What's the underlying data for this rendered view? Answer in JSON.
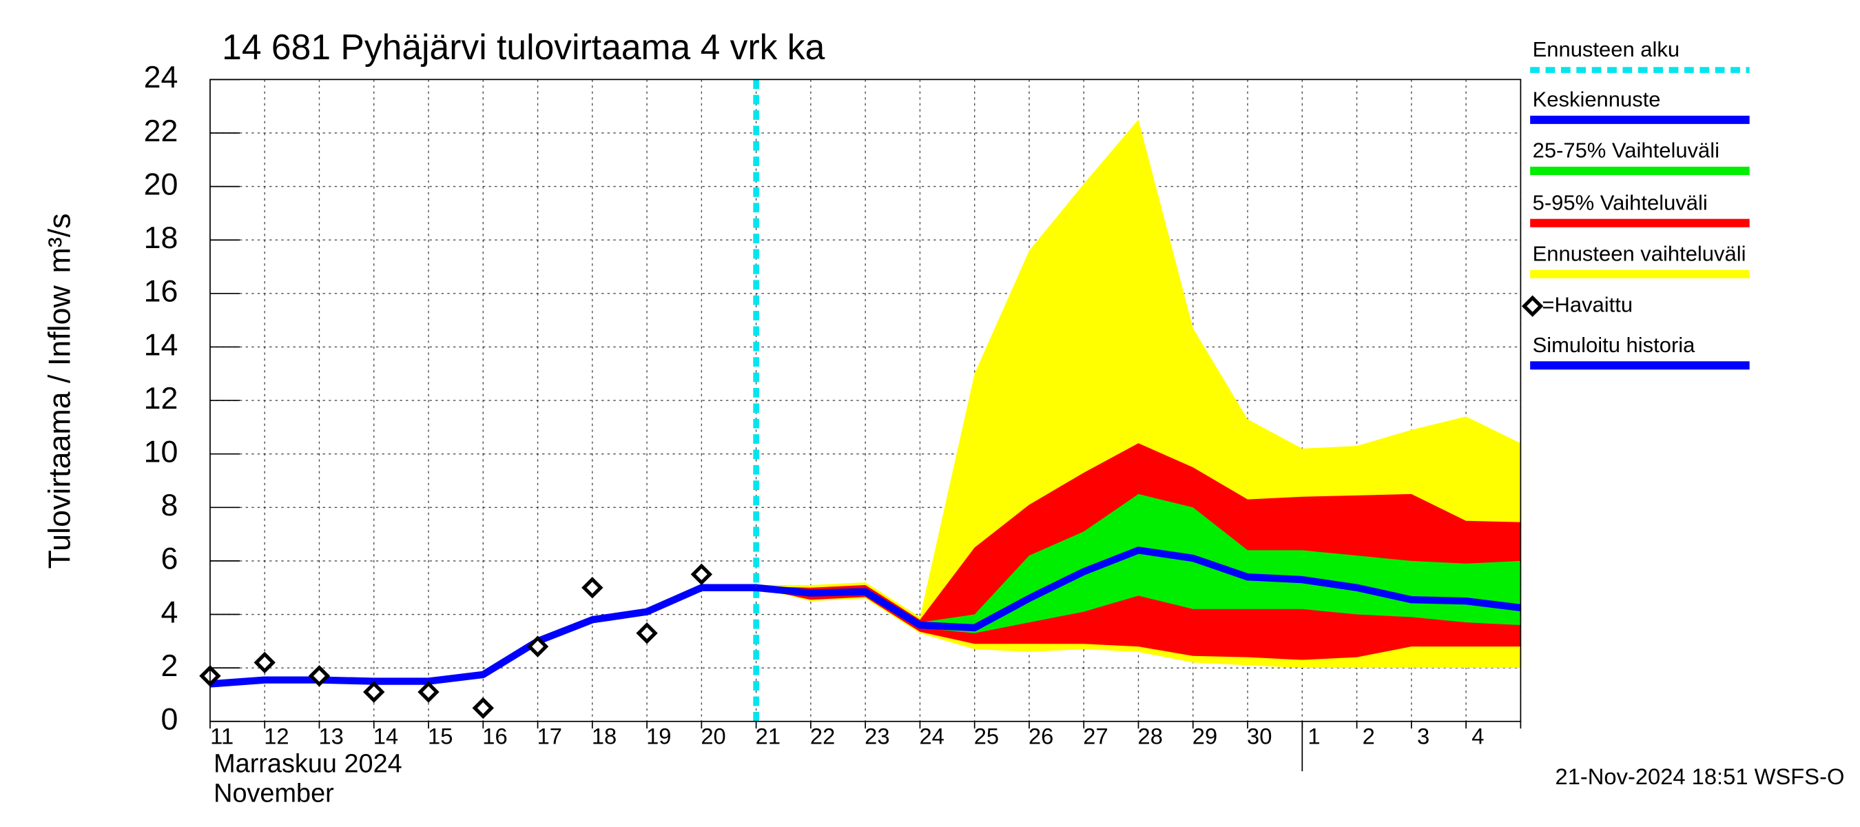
{
  "chart_data": {
    "type": "forecast",
    "title": "14 681 Pyhäjärvi tulovirtaama 4 vrk ka",
    "y_label": "Tulovirtaama / Inflow",
    "y_unit": "m³/s",
    "x_label_fi": "Marraskuu 2024",
    "x_label_en": "November",
    "footer": "21-Nov-2024 18:51 WSFS-O",
    "categories": [
      "11",
      "12",
      "13",
      "14",
      "15",
      "16",
      "17",
      "18",
      "19",
      "20",
      "21",
      "22",
      "23",
      "24",
      "25",
      "26",
      "27",
      "28",
      "29",
      "30",
      "1",
      "2",
      "3",
      "4",
      null
    ],
    "ylim": [
      0,
      24
    ],
    "yticks": [
      0,
      2,
      4,
      6,
      8,
      10,
      12,
      14,
      16,
      18,
      20,
      22,
      24
    ],
    "grid": true,
    "forecast_start": {
      "name": "Ennusteen alku",
      "color": "#00e5ee",
      "category_index": 10
    },
    "bands": [
      {
        "name": "Ennusteen vaihteluväli",
        "color": "#ffff00",
        "lower": [
          null,
          null,
          null,
          null,
          null,
          null,
          null,
          null,
          null,
          null,
          5.0,
          4.5,
          4.6,
          3.3,
          2.7,
          2.6,
          2.7,
          2.6,
          2.2,
          2.1,
          2.0,
          2.0,
          2.0,
          2.0,
          2.0
        ],
        "upper": [
          null,
          null,
          null,
          null,
          null,
          null,
          null,
          null,
          null,
          null,
          5.1,
          5.1,
          5.2,
          3.9,
          13.0,
          17.6,
          20.1,
          22.5,
          14.7,
          11.3,
          10.2,
          10.3,
          10.9,
          11.4,
          10.4
        ]
      },
      {
        "name": "5-95% Vaihteluväli",
        "color": "#ff0000",
        "lower": [
          null,
          null,
          null,
          null,
          null,
          null,
          null,
          null,
          null,
          null,
          5.0,
          4.55,
          4.65,
          3.35,
          2.9,
          2.9,
          2.9,
          2.8,
          2.45,
          2.4,
          2.3,
          2.4,
          2.8,
          2.8,
          2.8
        ],
        "upper": [
          null,
          null,
          null,
          null,
          null,
          null,
          null,
          null,
          null,
          null,
          5.05,
          5.0,
          5.1,
          3.8,
          6.5,
          8.1,
          9.3,
          10.4,
          9.5,
          8.3,
          8.4,
          8.45,
          8.5,
          7.5,
          7.45
        ]
      },
      {
        "name": "25-75% Vaihteluväli",
        "color": "#00ee00",
        "lower": [
          null,
          null,
          null,
          null,
          null,
          null,
          null,
          null,
          null,
          null,
          5.0,
          4.7,
          4.75,
          3.5,
          3.3,
          3.7,
          4.1,
          4.7,
          4.2,
          4.2,
          4.2,
          4.0,
          3.9,
          3.7,
          3.6
        ],
        "upper": [
          null,
          null,
          null,
          null,
          null,
          null,
          null,
          null,
          null,
          null,
          5.0,
          4.9,
          4.95,
          3.7,
          4.0,
          6.2,
          7.1,
          8.5,
          8.0,
          6.4,
          6.4,
          6.2,
          6.0,
          5.9,
          6.0
        ]
      }
    ],
    "series": [
      {
        "name": "Keskiennuste",
        "color": "#0000ff",
        "values": [
          null,
          null,
          null,
          null,
          null,
          null,
          null,
          null,
          null,
          null,
          5.0,
          4.8,
          4.85,
          3.6,
          3.5,
          4.6,
          5.6,
          6.4,
          6.1,
          5.4,
          5.3,
          5.0,
          4.55,
          4.5,
          4.25
        ]
      },
      {
        "name": "Simuloitu historia",
        "color": "#0000ff",
        "values": [
          1.4,
          1.55,
          1.55,
          1.5,
          1.5,
          1.75,
          3.0,
          3.8,
          4.1,
          5.0,
          5.0,
          null,
          null,
          null,
          null,
          null,
          null,
          null,
          null,
          null,
          null,
          null,
          null,
          null,
          null
        ]
      }
    ],
    "observed": {
      "name": "=Havaittu",
      "color": "#000000",
      "values": [
        1.7,
        2.2,
        1.7,
        1.1,
        1.1,
        0.5,
        2.8,
        5.0,
        3.3,
        5.5,
        null,
        null,
        null,
        null,
        null,
        null,
        null,
        null,
        null,
        null,
        null,
        null,
        null,
        null,
        null
      ]
    }
  }
}
